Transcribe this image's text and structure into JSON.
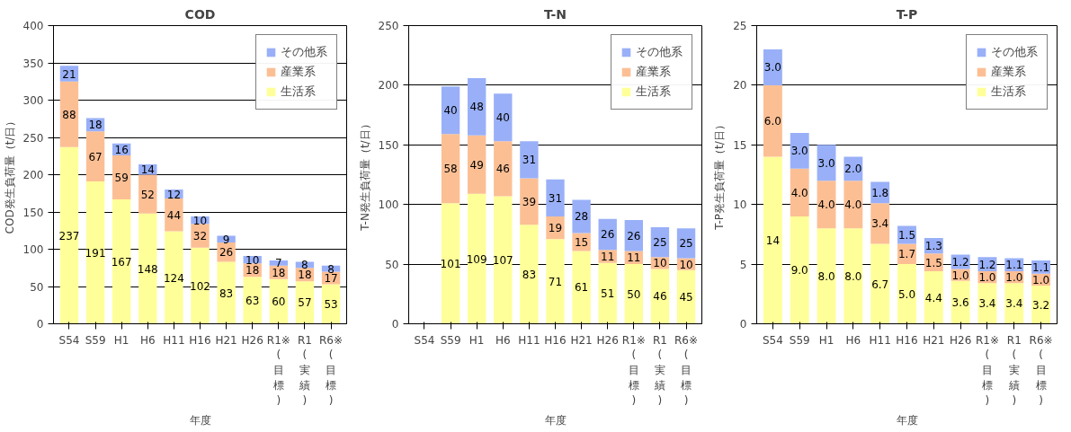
{
  "chart_data": [
    {
      "type": "bar",
      "title": "COD",
      "xlabel": "年度",
      "ylabel": "COD発生負荷量（t/日）",
      "stacked": true,
      "grid": "y",
      "legend": "top right",
      "data_labels": true,
      "categories": [
        "S54",
        "S59",
        "H1",
        "H6",
        "H11",
        "H16",
        "H21",
        "H26",
        "R1※\n(目標)",
        "R1\n(実績)",
        "R6※\n(目標)"
      ],
      "ylim": [
        0,
        400
      ],
      "yticks": [
        0,
        50,
        100,
        150,
        200,
        250,
        300,
        350,
        400
      ],
      "series": [
        {
          "name": "生活系",
          "color": "#ffff99",
          "values": [
            237,
            191,
            167,
            148,
            124,
            102,
            83,
            63,
            60,
            57,
            53
          ]
        },
        {
          "name": "産業系",
          "color": "#fcbf94",
          "values": [
            88,
            67,
            59,
            52,
            44,
            32,
            26,
            18,
            18,
            18,
            17
          ]
        },
        {
          "name": "その他系",
          "color": "#99b0f8",
          "values": [
            21,
            18,
            16,
            14,
            12,
            10,
            9,
            10,
            7,
            8,
            8
          ]
        }
      ]
    },
    {
      "type": "bar",
      "title": "T-N",
      "xlabel": "年度",
      "ylabel": "T-N発生負荷量（t/日）",
      "stacked": true,
      "grid": "y",
      "legend": "top right",
      "data_labels": true,
      "categories": [
        "S54",
        "S59",
        "H1",
        "H6",
        "H11",
        "H16",
        "H21",
        "H26",
        "R1※\n(目標)",
        "R1\n(実績)",
        "R6※\n(目標)"
      ],
      "ylim": [
        0,
        250
      ],
      "yticks": [
        0,
        50,
        100,
        150,
        200,
        250
      ],
      "series": [
        {
          "name": "生活系",
          "color": "#ffff99",
          "values": [
            null,
            101,
            109,
            107,
            83,
            71,
            61,
            51,
            50,
            46,
            45
          ]
        },
        {
          "name": "産業系",
          "color": "#fcbf94",
          "values": [
            null,
            58,
            49,
            46,
            39,
            19,
            15,
            11,
            11,
            10,
            10
          ]
        },
        {
          "name": "その他系",
          "color": "#99b0f8",
          "values": [
            null,
            40,
            48,
            40,
            31,
            31,
            28,
            26,
            26,
            25,
            25
          ]
        }
      ]
    },
    {
      "type": "bar",
      "title": "T-P",
      "xlabel": "年度",
      "ylabel": "T-P発生負荷量（t/日）",
      "stacked": true,
      "grid": "y",
      "legend": "top right",
      "categories": [
        "S54",
        "S59",
        "H1",
        "H6",
        "H11",
        "H16",
        "H21",
        "H26",
        "R1※\n(目標)",
        "R1\n(実績)",
        "R6※\n(目標)"
      ],
      "ylim": [
        0,
        25
      ],
      "yticks": [
        0,
        5,
        10,
        15,
        20,
        25
      ],
      "series": [
        {
          "name": "生活系",
          "color": "#ffff99",
          "values": [
            14,
            9.0,
            8.0,
            8.0,
            6.7,
            5.0,
            4.4,
            3.6,
            3.4,
            3.4,
            3.2
          ],
          "value_labels": [
            "14",
            "9.0",
            "8.0",
            "8.0",
            "6.7",
            "5.0",
            "4.4",
            "3.6",
            "3.4",
            "3.4",
            "3.2"
          ]
        },
        {
          "name": "産業系",
          "color": "#fcbf94",
          "values": [
            6.0,
            4.0,
            4.0,
            4.0,
            3.4,
            1.7,
            1.5,
            1.0,
            1.0,
            1.0,
            1.0
          ],
          "value_labels": [
            "6.0",
            "4.0",
            "4.0",
            "4.0",
            "3.4",
            "1.7",
            "1.5",
            "1.0",
            "1.0",
            "1.0",
            "1.0"
          ]
        },
        {
          "name": "その他系",
          "color": "#99b0f8",
          "values": [
            3.0,
            3.0,
            3.0,
            2.0,
            1.8,
            1.5,
            1.3,
            1.2,
            1.2,
            1.1,
            1.1
          ],
          "value_labels": [
            "3.0",
            "3.0",
            "3.0",
            "2.0",
            "1.8",
            "1.5",
            "1.3",
            "1.2",
            "1.2",
            "1.1",
            "1.1"
          ]
        }
      ]
    }
  ]
}
